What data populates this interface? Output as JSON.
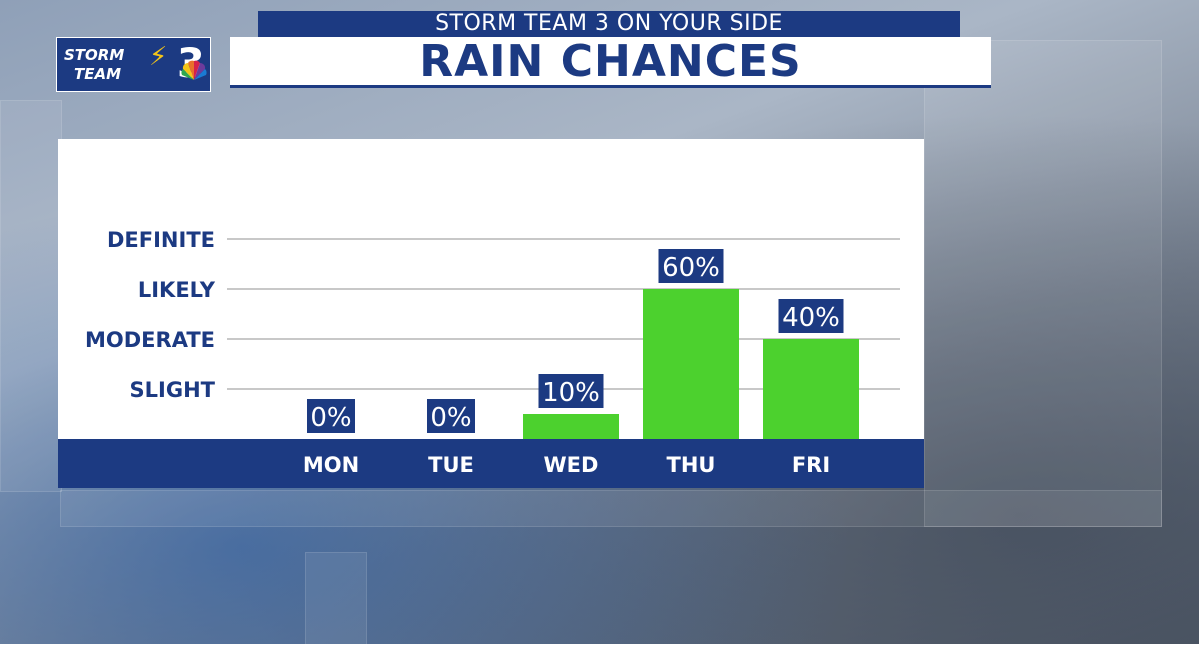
{
  "header": {
    "banner": "STORM TEAM 3 ON YOUR SIDE",
    "title": "RAIN CHANCES"
  },
  "logo": {
    "line1": "STORM",
    "line2": "TEAM",
    "number": "3",
    "icon": "peacock-icon"
  },
  "colors": {
    "navy": "#1c3a82",
    "bar_green": "#4cd12e",
    "panel": "#ffffff",
    "gridline": "#c8c8c8"
  },
  "chart_data": {
    "type": "bar",
    "title": "RAIN CHANCES",
    "categories": [
      "MON",
      "TUE",
      "WED",
      "THU",
      "FRI"
    ],
    "values": [
      0,
      0,
      10,
      60,
      40
    ],
    "data_labels": [
      "0%",
      "0%",
      "10%",
      "60%",
      "40%"
    ],
    "y_levels": [
      {
        "label": "SLIGHT",
        "value": 20
      },
      {
        "label": "MODERATE",
        "value": 40
      },
      {
        "label": "LIKELY",
        "value": 60
      },
      {
        "label": "DEFINITE",
        "value": 80
      }
    ],
    "ylim": [
      0,
      80
    ],
    "grid": true,
    "legend": "none"
  }
}
